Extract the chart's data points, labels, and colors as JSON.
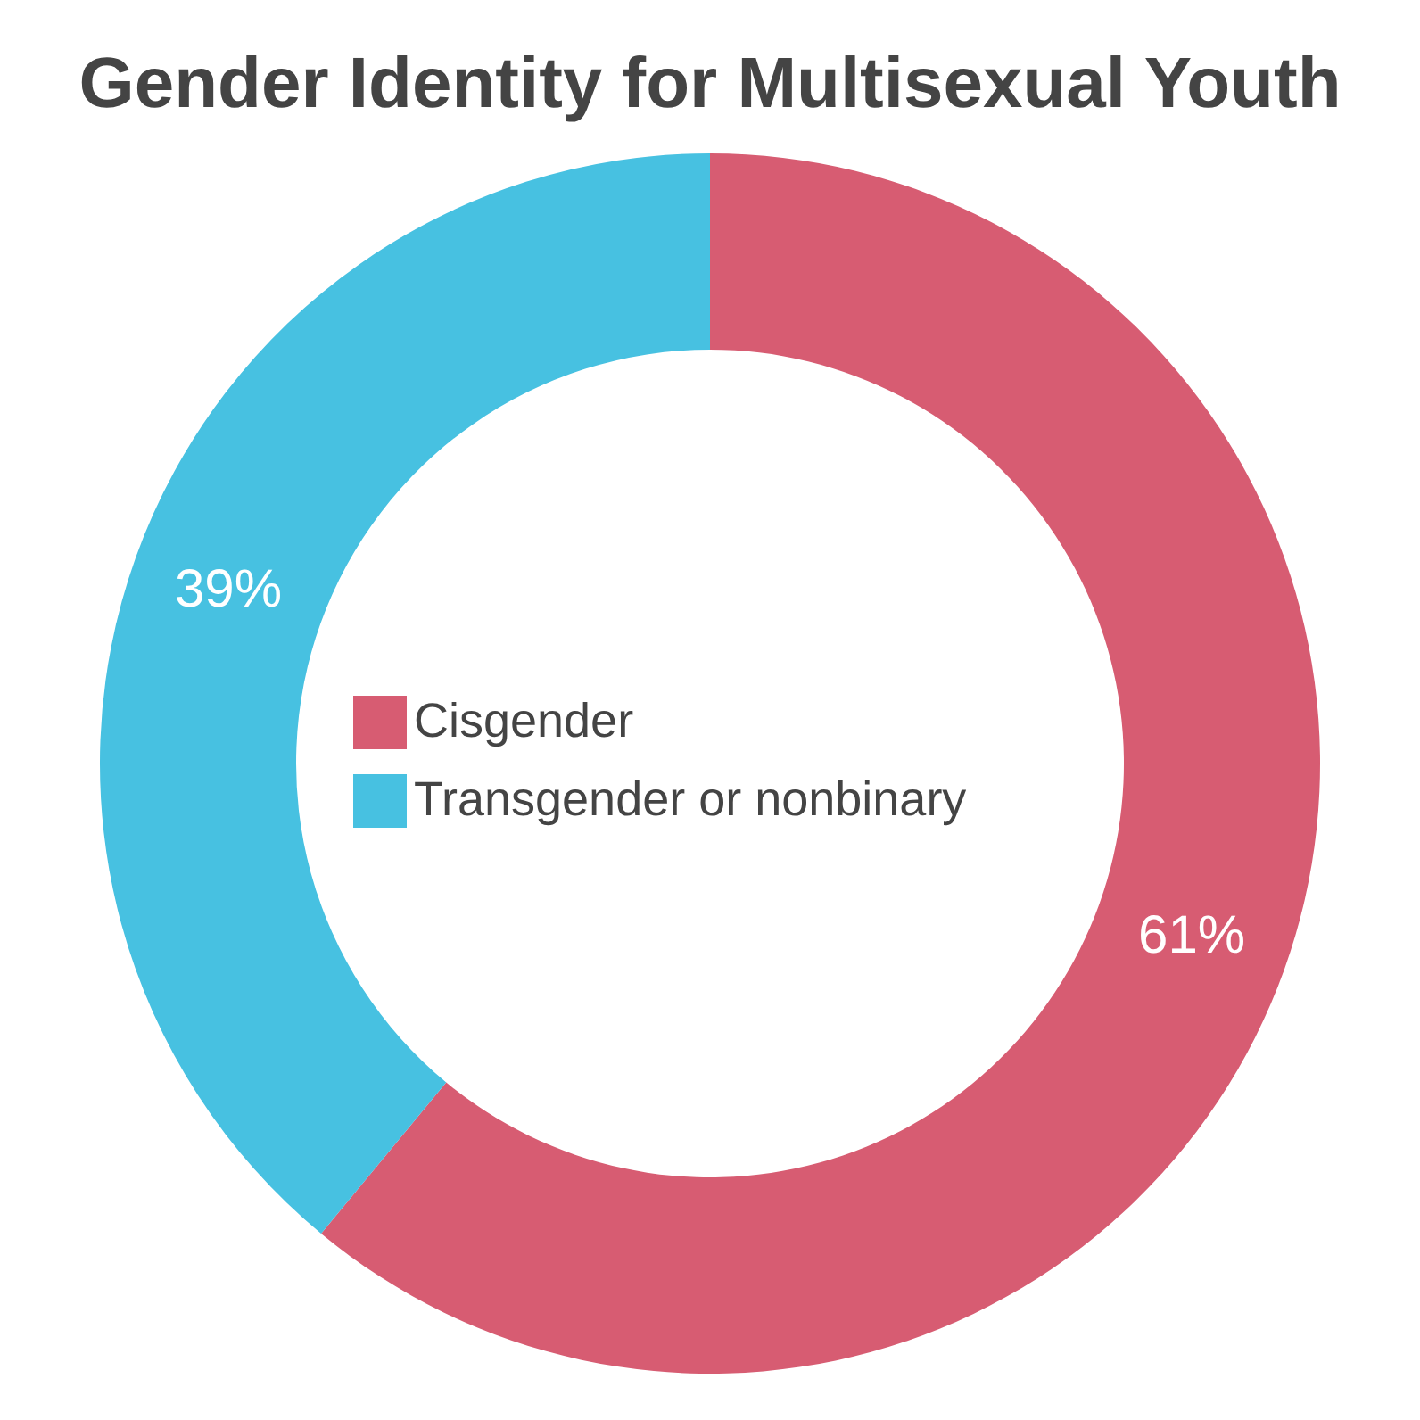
{
  "chart_data": {
    "type": "donut",
    "title": "Gender Identity for Multisexual Youth",
    "categories": [
      "Cisgender",
      "Transgender or nonbinary"
    ],
    "values": [
      61,
      39
    ],
    "colors": [
      "#d75c72",
      "#47c1e1"
    ],
    "value_labels": [
      "61%",
      "39%"
    ],
    "legend": "center"
  }
}
